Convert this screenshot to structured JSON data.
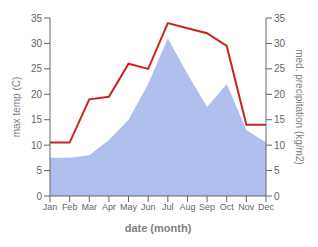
{
  "chart_data": {
    "type": "line",
    "xlabel": "date (month)",
    "ylabel": "max temp (C)",
    "y2label": "med. precipitation (kg/m2)",
    "categories": [
      "Jan",
      "Feb",
      "Mar",
      "Apr",
      "May",
      "Jun",
      "Jul",
      "Aug",
      "Sep",
      "Oct",
      "Nov",
      "Dec"
    ],
    "series": [
      {
        "type": "area",
        "color": "#b0bfee",
        "axis": "y2",
        "values": [
          7.5,
          7.5,
          8.0,
          11.0,
          15.0,
          22.0,
          31.0,
          24.0,
          17.5,
          22.0,
          13.0,
          10.5
        ]
      },
      {
        "type": "line",
        "color": "#cc2222",
        "values": [
          10.5,
          10.5,
          19.0,
          19.5,
          26.0,
          25.0,
          34.0,
          33.0,
          32.0,
          29.5,
          14.0,
          14.0
        ]
      }
    ],
    "ylim": [
      0,
      35
    ],
    "yticks": [
      0,
      5,
      10,
      15,
      20,
      25,
      30,
      35
    ],
    "y2lim": [
      0,
      35
    ],
    "y2ticks": [
      0,
      5,
      10,
      15,
      20,
      25,
      30,
      35
    ],
    "grid": false
  }
}
